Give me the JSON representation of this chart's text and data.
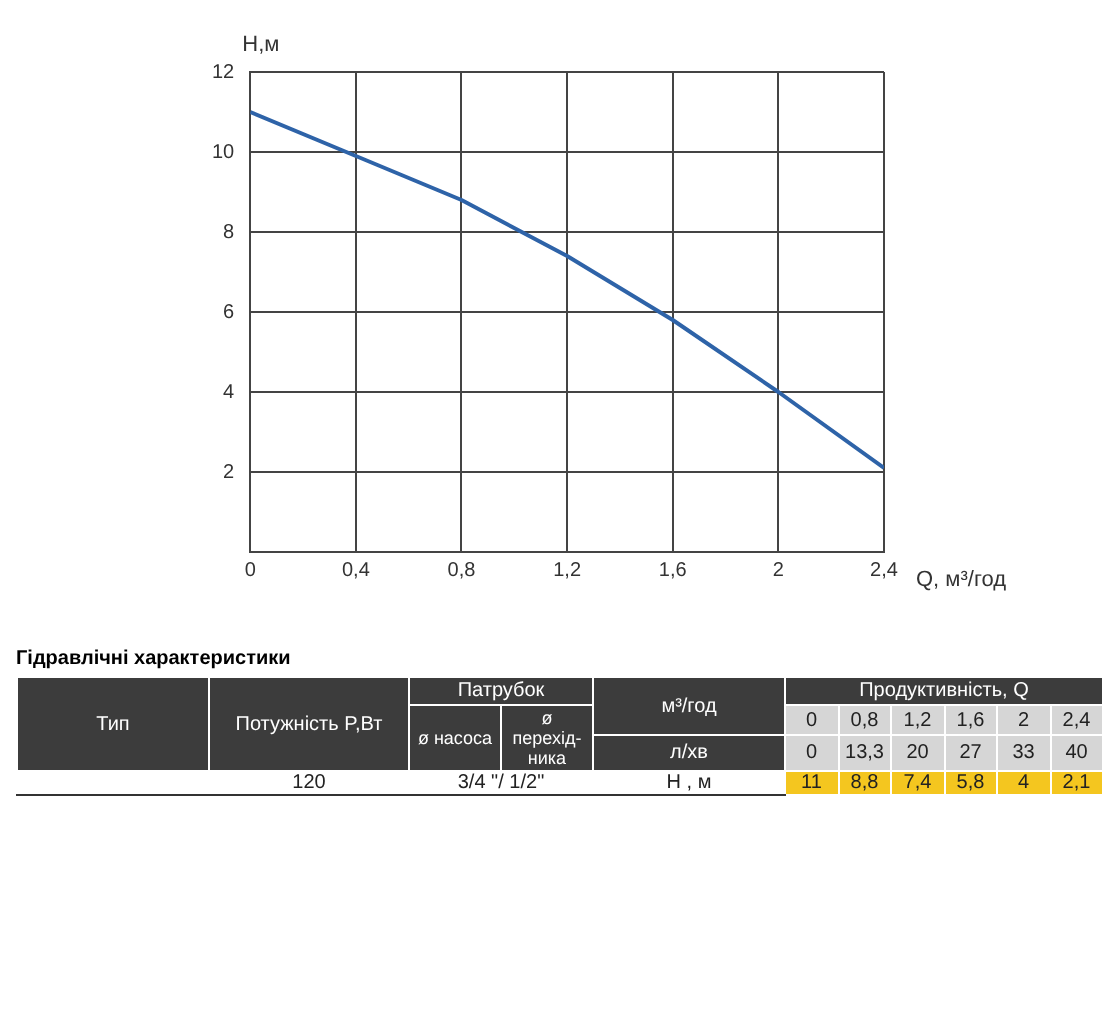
{
  "chart_data": {
    "type": "line",
    "x": [
      0,
      0.4,
      0.8,
      1.2,
      1.6,
      2,
      2.4
    ],
    "series": [
      {
        "color": "#2e63a8",
        "values": [
          11,
          9.9,
          8.8,
          7.4,
          5.8,
          4,
          2.1
        ]
      }
    ],
    "xlim": [
      0,
      2.4
    ],
    "xticks": [
      0,
      {
        "value": 0.4,
        "label": "0,4"
      },
      {
        "value": 0.8,
        "label": "0,8"
      },
      {
        "value": 1.2,
        "label": "1,2"
      },
      {
        "value": 1.6,
        "label": "1,6"
      },
      2,
      {
        "value": 2.4,
        "label": "2,4"
      }
    ],
    "ylim": [
      0,
      12
    ],
    "yticks": [
      {
        "value": 0,
        "label": null
      },
      2,
      4,
      6,
      8,
      10,
      12
    ],
    "xlabel": "Q, м³/год",
    "ylabel": "H,м",
    "grid": true,
    "legend": false,
    "marker": "none",
    "annotations": [
      "Гідравлічні характеристики",
      "Тип",
      "Потужність  P,Вт",
      "Патрубок",
      "ø насоса",
      "ø перехід-ника",
      "м³/год",
      "Продуктивність, Q",
      "0",
      "0,8",
      "1,2",
      "1,6",
      "2",
      "2,4",
      "л/хв",
      "0",
      "13,3",
      "20",
      "27",
      "33",
      "40",
      "120",
      "3/4 \"/ 1/2\"",
      "Н , м",
      "11",
      "8,8",
      "7,4",
      "5,8",
      "4",
      "2,1"
    ]
  }
}
